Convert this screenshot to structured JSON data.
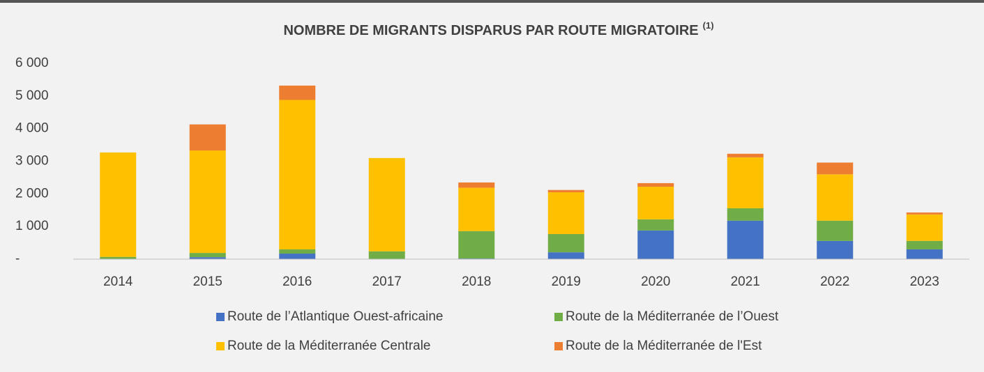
{
  "chart_data": {
    "type": "stacked_bar",
    "title": "NOMBRE DE MIGRANTS DISPARUS PAR ROUTE MIGRATOIRE",
    "title_note": "(1)",
    "categories": [
      "2014",
      "2015",
      "2016",
      "2017",
      "2018",
      "2019",
      "2020",
      "2021",
      "2022",
      "2023"
    ],
    "series": [
      {
        "name": "Route de l’Atlantique Ouest-africaine",
        "color": "#4472c4",
        "values": [
          0,
          60,
          170,
          0,
          20,
          210,
          880,
          1180,
          560,
          300
        ]
      },
      {
        "name": "Route de la Méditerranée de l’Ouest",
        "color": "#70ad47",
        "values": [
          70,
          130,
          130,
          240,
          840,
          560,
          340,
          380,
          620,
          260
        ]
      },
      {
        "name": "Route de la Méditerranée Centrale",
        "color": "#ffc000",
        "values": [
          3200,
          3140,
          4580,
          2860,
          1330,
          1280,
          1000,
          1560,
          1420,
          810
        ]
      },
      {
        "name": "Route de la Méditerranée de l'Est",
        "color": "#ed7d31",
        "values": [
          0,
          800,
          440,
          0,
          160,
          70,
          110,
          110,
          360,
          60
        ]
      }
    ],
    "ylim": [
      0,
      6000
    ],
    "yticks": [
      {
        "value": 0,
        "label": "-"
      },
      {
        "value": 1000,
        "label": "1 000"
      },
      {
        "value": 2000,
        "label": "2 000"
      },
      {
        "value": 3000,
        "label": "3 000"
      },
      {
        "value": 4000,
        "label": "4 000"
      },
      {
        "value": 5000,
        "label": "5 000"
      },
      {
        "value": 6000,
        "label": "6 000"
      }
    ],
    "grid": false,
    "legend": "bottom"
  }
}
